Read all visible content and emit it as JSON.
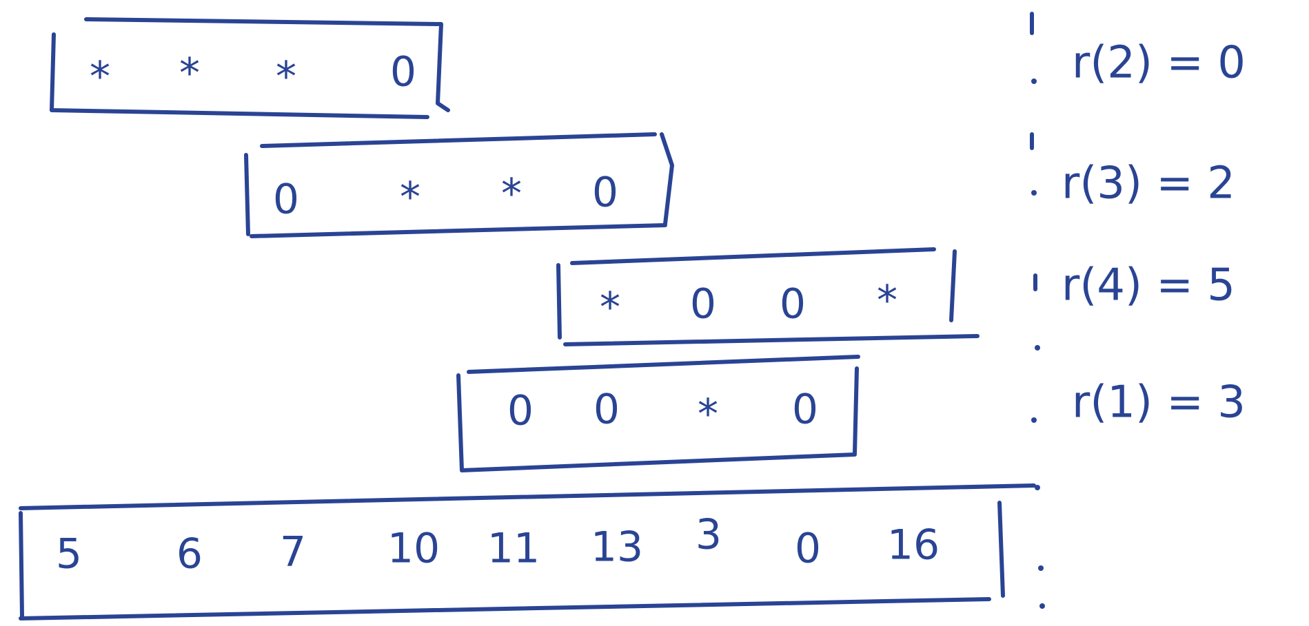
{
  "colors": {
    "ink": "#2a4494",
    "background": "#ffffff"
  },
  "rows": [
    {
      "cells": [
        "*",
        "*",
        "*",
        "0"
      ],
      "label": "r(2) = 0"
    },
    {
      "cells": [
        "0",
        "*",
        "*",
        "0"
      ],
      "label": "r(3) = 2"
    },
    {
      "cells": [
        "*",
        "0",
        "0",
        "*"
      ],
      "label": "r(4) = 5"
    },
    {
      "cells": [
        "0",
        "0",
        "*",
        "0"
      ],
      "label": "r(1) = 3"
    }
  ],
  "bottom_array": [
    "5",
    "6",
    "7",
    "10",
    "11",
    "13",
    "3",
    "0",
    "16"
  ]
}
